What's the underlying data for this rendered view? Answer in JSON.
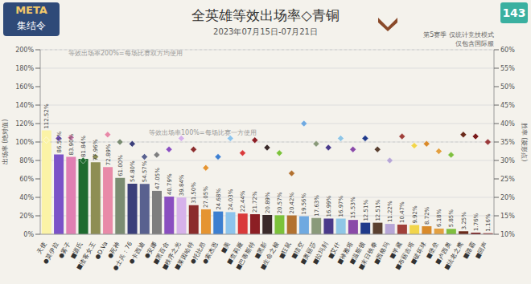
{
  "chart_data": {
    "type": "bar",
    "title": "全英雄等效出场率◇青铜",
    "subtitle": "2023年07月15日-07月21日",
    "header": {
      "logo_top": "META",
      "logo_bottom": "集结令",
      "issue": "143",
      "note_1": "第5赛季 仅统计竞技模式",
      "note_2": "仅包含国际服"
    },
    "y_label": "出场率 (绝对值)",
    "y2_label": "胜率 (菱形点)",
    "annotations": [
      {
        "text": "等效出场率200%=每场比赛双方均使用",
        "y": 200
      },
      {
        "text": "等效出场率100%=每场比赛一方使用",
        "y": 100
      }
    ],
    "categories": [
      "天使",
      "●莫伊拉",
      "●雾子",
      "■源氏",
      "■渣客女王",
      "●D.Va",
      "●死神",
      "●士兵：76",
      "●卡西迪",
      "●安娜",
      "■黑百合",
      "■秩序之光",
      "■莱因哈特",
      "●托比昂",
      "●索杰恩",
      "■美",
      "■查莉娅",
      "■巴蒂斯特",
      "■黑影",
      "■生命之梭",
      "■狂鼠",
      "■猎空",
      "■奥丽莎",
      "■拉玛刹",
      "■艾什",
      "■禅雅塔",
      "■温斯顿",
      "■末日铁拳",
      "■西格玛",
      "■半藏",
      "■布丽吉塔",
      "■破坏球",
      "■堡垒",
      "■卢西奥",
      "■法老之鹰",
      "■路霸",
      "■回声"
    ],
    "series": [
      {
        "type": "bar",
        "axis": "y",
        "values": [
          112.52,
          86.55,
          83.9,
          81.84,
          77.96,
          72.89,
          61.0,
          54.8,
          54.57,
          47.05,
          40.79,
          39.84,
          31.5,
          27.05,
          24.68,
          24.03,
          22.44,
          21.72,
          20.89,
          20.57,
          20.42,
          19.56,
          17.63,
          16.99,
          16.97,
          15.53,
          12.51,
          12.51,
          11.22,
          10.47,
          9.92,
          8.72,
          6.18,
          5.85,
          3.25,
          1.76,
          1.16
        ],
        "value_labels": [
          "112.52%",
          "86.55%",
          "83.90%",
          "81.84%",
          "77.96%",
          "72.89%",
          "61.00%",
          "54.80%",
          "54.57%",
          "47.05%",
          "40.79%",
          "39.84%",
          "31.50%",
          "27.05%",
          "24.68%",
          "24.03%",
          "22.44%",
          "21.72%",
          "20.89%",
          "20.57%",
          "20.42%",
          "19.56%",
          "17.63%",
          "16.99%",
          "16.97%",
          "15.53%",
          "12.51%",
          "12.51%",
          "11.22%",
          "10.47%",
          "9.92%",
          "8.72%",
          "6.18%",
          "5.85%",
          "3.25%",
          "1.76%",
          "1.16%"
        ],
        "colors": [
          "#fbf3a6",
          "#7b52c8",
          "#e07fb2",
          "#1e6b2f",
          "#8e8e54",
          "#e88aa8",
          "#7b8c72",
          "#3b3f7a",
          "#59618f",
          "#7e7e7e",
          "#8a4fc0",
          "#d6b2ea",
          "#8b2c2c",
          "#e59431",
          "#3d7fd0",
          "#8dc4ec",
          "#d93a3a",
          "#8c1e24",
          "#3a2a2a",
          "#7cc23a",
          "#b2712f",
          "#6fa9e0",
          "#8a9a7a",
          "#4a3a8a",
          "#8fc6e6",
          "#8a4aa8",
          "#1f3a8a",
          "#5a4030",
          "#b7a6d6",
          "#a0403a",
          "#f2d54a",
          "#d98a2a",
          "#e3a040",
          "#7fbf3f",
          "#6a2a1a",
          "#7a1a1a",
          "#9a3a3a"
        ]
      },
      {
        "type": "scatter",
        "axis": "y2",
        "marker": "diamond",
        "values": [
          35.5,
          36.0,
          36.2,
          30.0,
          31.0,
          37.0,
          35.0,
          34.5,
          31.0,
          31.5,
          33.0,
          36.0,
          33.0,
          28.0,
          31.0,
          36.0,
          32.0,
          35.5,
          33.5,
          32.0,
          26.5,
          40.0,
          34.5,
          33.5,
          36.0,
          33.0,
          36.0,
          33.0,
          30.0,
          36.5,
          34.0,
          34.5,
          32.5,
          31.5,
          37.0,
          36.5,
          35.0
        ],
        "colors": [
          "#fbf3a6",
          "#7b52c8",
          "#e07fb2",
          "#1e6b2f",
          "#8e8e54",
          "#e88aa8",
          "#7b8c72",
          "#3b3f7a",
          "#59618f",
          "#7e7e7e",
          "#8a4fc0",
          "#d6b2ea",
          "#8b2c2c",
          "#e59431",
          "#3d7fd0",
          "#8dc4ec",
          "#d93a3a",
          "#8c1e24",
          "#3a2a2a",
          "#7cc23a",
          "#b2712f",
          "#6fa9e0",
          "#8a9a7a",
          "#4a3a8a",
          "#8fc6e6",
          "#8a4aa8",
          "#1f3a8a",
          "#5a4030",
          "#b7a6d6",
          "#a0403a",
          "#f2d54a",
          "#d98a2a",
          "#e3a040",
          "#7fbf3f",
          "#6a2a1a",
          "#7a1a1a",
          "#9a3a3a"
        ]
      }
    ],
    "ylim": [
      0,
      200
    ],
    "yticks": [
      {
        "value": 0,
        "label": "0%"
      },
      {
        "value": 20,
        "label": "20%"
      },
      {
        "value": 40,
        "label": "40%"
      },
      {
        "value": 60,
        "label": "60%"
      },
      {
        "value": 80,
        "label": "80%"
      },
      {
        "value": 100,
        "label": "100%"
      },
      {
        "value": 120,
        "label": "120%"
      },
      {
        "value": 140,
        "label": "140%"
      },
      {
        "value": 160,
        "label": "160%"
      },
      {
        "value": 180,
        "label": "180%"
      },
      {
        "value": 200,
        "label": "200%"
      }
    ],
    "y2lim": [
      10,
      60
    ],
    "y2ticks": [
      {
        "value": 10,
        "label": "10%"
      },
      {
        "value": 15,
        "label": "15%"
      },
      {
        "value": 20,
        "label": "20%"
      },
      {
        "value": 25,
        "label": "25%"
      },
      {
        "value": 30,
        "label": "30%"
      },
      {
        "value": 35,
        "label": "35%"
      },
      {
        "value": 40,
        "label": "40%"
      },
      {
        "value": 45,
        "label": "45%"
      },
      {
        "value": 50,
        "label": "50%"
      },
      {
        "value": 55,
        "label": "55%"
      },
      {
        "value": 60,
        "label": "60%"
      }
    ],
    "grid": true,
    "data_labels": true
  }
}
